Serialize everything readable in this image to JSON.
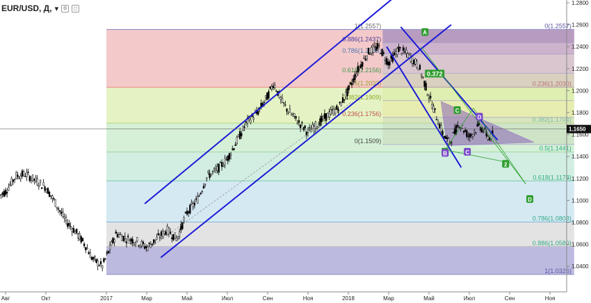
{
  "header": {
    "symbol": "EUR/USD, Д,",
    "arrow": "▾"
  },
  "chart_data": {
    "type": "candlestick",
    "symbol": "EUR/USD",
    "timeframe": "Д",
    "current_price": "1.1650",
    "y_ticks": [
      "1.2800",
      "1.2600",
      "1.2400",
      "1.2200",
      "1.2000",
      "1.1800",
      "1.1600",
      "1.1400",
      "1.1200",
      "1.1000",
      "1.0800",
      "1.0600",
      "1.0400"
    ],
    "x_ticks": [
      {
        "label": "Авг",
        "t": 0
      },
      {
        "label": "Окт",
        "t": 2
      },
      {
        "label": "2017",
        "t": 5
      },
      {
        "label": "Мар",
        "t": 7
      },
      {
        "label": "Май",
        "t": 9
      },
      {
        "label": "Июл",
        "t": 11
      },
      {
        "label": "Сен",
        "t": 13
      },
      {
        "label": "Ноя",
        "t": 15
      },
      {
        "label": "2018",
        "t": 17
      },
      {
        "label": "Мар",
        "t": 19
      },
      {
        "label": "Май",
        "t": 21
      },
      {
        "label": "Июл",
        "t": 23
      },
      {
        "label": "Сен",
        "t": 25
      },
      {
        "label": "Ноя",
        "t": 27
      }
    ],
    "price_path": [
      [
        -0.5,
        1.102
      ],
      [
        0.0,
        1.108
      ],
      [
        0.5,
        1.122
      ],
      [
        1.0,
        1.124
      ],
      [
        1.5,
        1.118
      ],
      [
        2.0,
        1.112
      ],
      [
        2.5,
        1.097
      ],
      [
        3.0,
        1.081
      ],
      [
        3.5,
        1.071
      ],
      [
        4.0,
        1.058
      ],
      [
        4.3,
        1.047
      ],
      [
        4.8,
        1.04
      ],
      [
        5.1,
        1.053
      ],
      [
        5.5,
        1.07
      ],
      [
        6.0,
        1.065
      ],
      [
        6.5,
        1.063
      ],
      [
        7.0,
        1.057
      ],
      [
        7.5,
        1.065
      ],
      [
        8.0,
        1.073
      ],
      [
        8.5,
        1.065
      ],
      [
        9.0,
        1.089
      ],
      [
        9.5,
        1.1
      ],
      [
        10.0,
        1.122
      ],
      [
        10.5,
        1.128
      ],
      [
        11.0,
        1.138
      ],
      [
        11.5,
        1.155
      ],
      [
        12.0,
        1.172
      ],
      [
        12.5,
        1.18
      ],
      [
        13.0,
        1.195
      ],
      [
        13.3,
        1.207
      ],
      [
        13.7,
        1.19
      ],
      [
        14.0,
        1.182
      ],
      [
        14.5,
        1.172
      ],
      [
        15.0,
        1.162
      ],
      [
        15.5,
        1.17
      ],
      [
        16.0,
        1.178
      ],
      [
        16.5,
        1.184
      ],
      [
        17.0,
        1.2
      ],
      [
        17.5,
        1.22
      ],
      [
        18.0,
        1.235
      ],
      [
        18.5,
        1.24
      ],
      [
        19.0,
        1.225
      ],
      [
        19.5,
        1.238
      ],
      [
        20.0,
        1.232
      ],
      [
        20.5,
        1.222
      ],
      [
        21.0,
        1.195
      ],
      [
        21.3,
        1.18
      ],
      [
        21.7,
        1.16
      ],
      [
        22.0,
        1.152
      ],
      [
        22.5,
        1.17
      ],
      [
        23.0,
        1.158
      ],
      [
        23.5,
        1.168
      ],
      [
        24.0,
        1.157
      ],
      [
        24.3,
        1.163
      ]
    ],
    "fib_large": {
      "start_t": 5,
      "end_t": 28.2,
      "levels": [
        {
          "label": "0(1.2557)",
          "price": 1.2557,
          "color": "#8a84c4"
        },
        {
          "label": "0.236(1.2030)",
          "price": 1.203,
          "color": "#e88a8a"
        },
        {
          "label": "0.382(1.1704)",
          "price": 1.1704,
          "color": "#b9d87a"
        },
        {
          "label": "0.5(1.1441)",
          "price": 1.1441,
          "color": "#9fd6a4"
        },
        {
          "label": "0.618(1.1178)",
          "price": 1.1178,
          "color": "#7fc7a8"
        },
        {
          "label": "0.786(1.0803)",
          "price": 1.0803,
          "color": "#7db8d6"
        },
        {
          "label": "0.886(1.0580)",
          "price": 1.058,
          "color": "#bdbdbd"
        },
        {
          "label": "1(1.0326)",
          "price": 1.0326,
          "color": "#8a84c4"
        }
      ]
    },
    "fib_small": {
      "start_t": 18.7,
      "end_t": 28.2,
      "levels": [
        {
          "label": "1(1.2557)",
          "price": 1.2557
        },
        {
          "label": "0.886(1.2437)",
          "price": 1.2437
        },
        {
          "label": "0.786(1.2333)",
          "price": 1.2333
        },
        {
          "label": "0.618(1.2156)",
          "price": 1.2156
        },
        {
          "label": "0.5(1.2033)",
          "price": 1.2033
        },
        {
          "label": "0.382(1.1909)",
          "price": 1.1909
        },
        {
          "label": "0.236(1.1756)",
          "price": 1.1756
        },
        {
          "label": "0(1.1509)",
          "price": 1.1509
        }
      ]
    },
    "pattern_labels": [
      {
        "label": "A",
        "t": 20.8,
        "price": 1.253,
        "color": "#2e9d2e"
      },
      {
        "label": "B",
        "t": 21.8,
        "price": 1.144,
        "color": "#2e9d2e"
      },
      {
        "label": "C",
        "t": 22.4,
        "price": 1.182,
        "color": "#2e9d2e"
      },
      {
        "label": "2",
        "t": 24.8,
        "price": 1.133,
        "color": "#2e9d2e"
      },
      {
        "label": "D",
        "t": 26.0,
        "price": 1.101,
        "color": "#2e9d2e"
      },
      {
        "label": "D",
        "t": 23.5,
        "price": 1.176,
        "color": "#7b4ac9"
      },
      {
        "label": "C",
        "t": 22.9,
        "price": 1.144,
        "color": "#7b4ac9"
      },
      {
        "label": "B",
        "t": 21.8,
        "price": 1.143,
        "color": "#7b4ac9"
      }
    ],
    "ratio_label": "0.372",
    "grid": false
  }
}
